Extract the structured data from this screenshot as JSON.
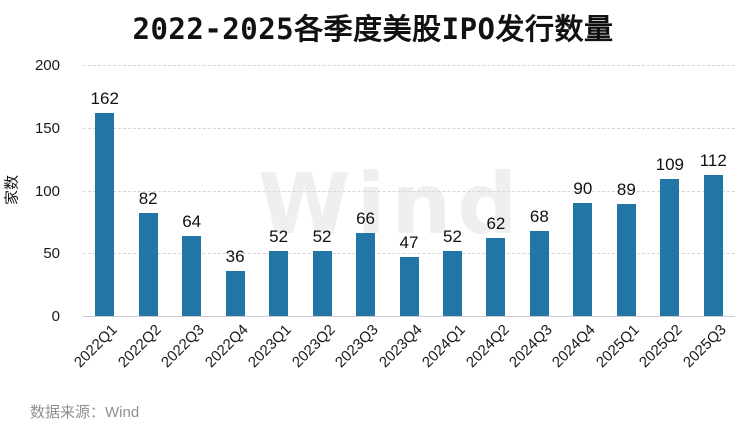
{
  "title": "2022-2025各季度美股IPO发行数量",
  "watermark_text": "Wind",
  "footer": {
    "source_label": "数据来源：Wind"
  },
  "colors": {
    "bar": "#2176A6",
    "grid": "#d6d6d6",
    "axis_line": "#cccccc",
    "footer_text": "#8f8f8f",
    "watermark": "#efefef",
    "text": "#111111"
  },
  "chart_data": {
    "type": "bar",
    "title": "2022-2025各季度美股IPO发行数量",
    "categories": [
      "2022Q1",
      "2022Q2",
      "2022Q3",
      "2022Q4",
      "2023Q1",
      "2023Q2",
      "2023Q3",
      "2023Q4",
      "2024Q1",
      "2024Q2",
      "2024Q3",
      "2024Q4",
      "2025Q1",
      "2025Q2",
      "2025Q3"
    ],
    "values": [
      162,
      82,
      64,
      36,
      52,
      52,
      66,
      47,
      52,
      62,
      68,
      90,
      89,
      109,
      112
    ],
    "xlabel": "",
    "ylabel": "家数",
    "ylim": [
      0,
      200
    ],
    "yticks": [
      0,
      50,
      100,
      150,
      200
    ],
    "grid": "horizontal-dashed",
    "bar_labels": true,
    "legend": "none",
    "x_tick_rotation": 45
  }
}
